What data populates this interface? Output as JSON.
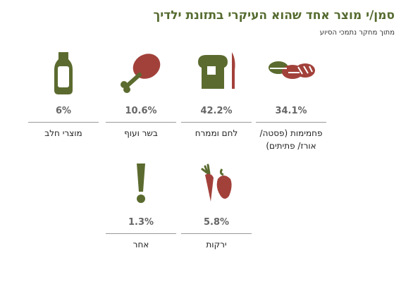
{
  "title": "סמן/י מוצר אחד שהוא העיקרי בתזונת ילדיך",
  "subtitle": "מתוך מחקר נתמכי הסיוע",
  "colors": {
    "green": "#5b6b2f",
    "red": "#a2413a",
    "title": "#556b2f"
  },
  "chart_data": {
    "type": "bar",
    "categories": [
      "פחמימות (פסטה/ אורז/ פתיתים)",
      "לחם וממרח",
      "בשר ועוף",
      "מוצרי חלב",
      "ירקות",
      "אחר"
    ],
    "values": [
      34.1,
      42.2,
      10.6,
      6,
      5.8,
      1.3
    ],
    "value_labels": [
      "34.1%",
      "42.2%",
      "10.6%",
      "6%",
      "5.8%",
      "1.3%"
    ],
    "icons": [
      "bread-loaves-icon",
      "bread-knife-icon",
      "chicken-leg-icon",
      "milk-bottle-icon",
      "vegetables-icon",
      "exclamation-icon"
    ],
    "unit": "%"
  }
}
